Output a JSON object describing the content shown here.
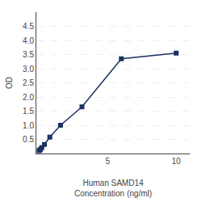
{
  "chart_data": {
    "type": "line",
    "xlabel": "Human SAMD14\nConcentration (ng/ml)",
    "ylabel": "OD",
    "x": [
      0,
      0.049,
      0.098,
      0.195,
      0.391,
      0.781,
      1.563,
      3.125,
      6,
      10
    ],
    "series": [
      {
        "values": [
          0.1,
          0.12,
          0.15,
          0.21,
          0.32,
          0.58,
          1.0,
          1.65,
          3.35,
          3.55
        ],
        "color": "#1a3060",
        "marker": "square",
        "line_style": "solid"
      }
    ],
    "xlim": [
      -0.2,
      11
    ],
    "xticks": [
      5,
      10
    ],
    "ylim": [
      0,
      5.0
    ],
    "yticks": [
      0.5,
      {
        "value": 1.0,
        "label": "1.0"
      },
      1.5,
      {
        "value": 2.0,
        "label": "2.0"
      },
      2.5,
      {
        "value": 3.0,
        "label": "3.0"
      },
      3.5,
      {
        "value": 4.0,
        "label": "4.0"
      },
      4.5
    ],
    "grid": "y"
  }
}
